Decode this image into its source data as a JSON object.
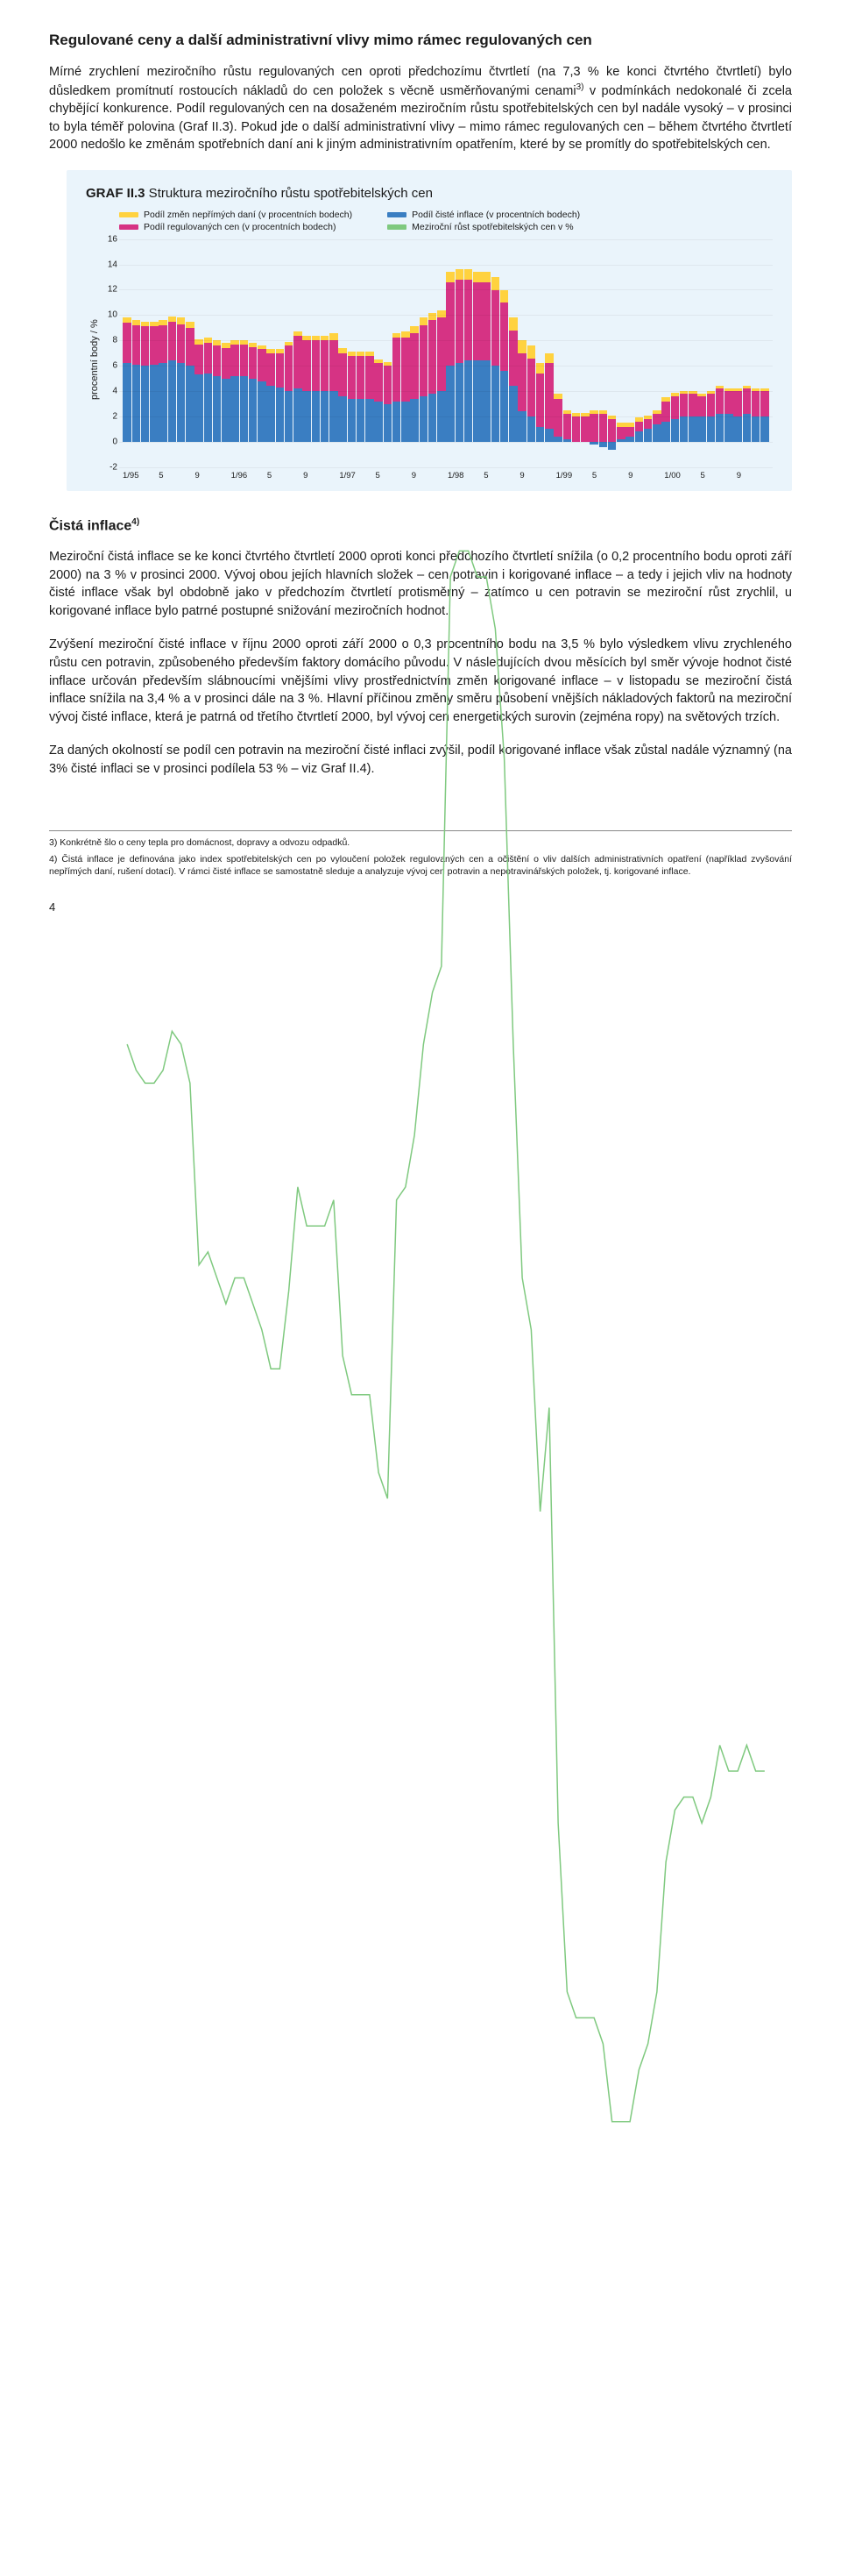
{
  "heading1": "Regulované ceny a další administrativní vlivy mimo rámec regulovaných cen",
  "para1": "Mírné zrychlení meziročního růstu regulovaných cen oproti předchozímu čtvrtletí (na 7,3 % ke konci čtvrtého čtvrtletí) bylo důsledkem promítnutí rostoucích nákladů do cen položek s věcně usměrňovanými cenami",
  "para1_sup": "3)",
  "para1b": " v podmínkách nedokonalé či zcela chybějící konkurence. Podíl regulovaných cen na dosaženém meziročním růstu spotřebitelských cen byl nadále vysoký – v prosinci to byla téměř polovina (Graf II.3). Pokud jde o další administrativní vlivy – mimo rámec regulovaných cen – během čtvrtého čtvrtletí 2000 nedošlo ke změnám spotřebních daní ani k jiným administrativním opatřením, které by se promítly do spotřebitelských cen.",
  "chart": {
    "title_bold": "GRAF II.3",
    "title_rest": " Struktura meziročního růstu spotřebitelských cen",
    "ylabel": "procentní body / %",
    "legend": {
      "l1": "Podíl změn nepřímých daní (v procentních bodech)",
      "l2": "Podíl regulovaných cen (v procentních bodech)",
      "l3": "Podíl čisté inflace (v procentních bodech)",
      "l4": "Meziroční růst spotřebitelských cen v %"
    },
    "colors": {
      "tax": "#ffd23f",
      "reg": "#d63384",
      "net": "#3a7ec2",
      "total_line": "#7fc97f",
      "bg": "#eaf4fb"
    },
    "ymin": -2,
    "ymax": 16,
    "ystep": 2,
    "xlabels": [
      "1/95",
      "5",
      "9",
      "1/96",
      "5",
      "9",
      "1/97",
      "5",
      "9",
      "1/98",
      "5",
      "9",
      "1/99",
      "5",
      "9",
      "1/00",
      "5",
      "9"
    ],
    "series": [
      {
        "net": 6.2,
        "reg": 3.2,
        "tax": 0.4
      },
      {
        "net": 6.1,
        "reg": 3.1,
        "tax": 0.4
      },
      {
        "net": 6.0,
        "reg": 3.1,
        "tax": 0.4
      },
      {
        "net": 6.1,
        "reg": 3.0,
        "tax": 0.4
      },
      {
        "net": 6.2,
        "reg": 3.0,
        "tax": 0.4
      },
      {
        "net": 6.4,
        "reg": 3.1,
        "tax": 0.4
      },
      {
        "net": 6.2,
        "reg": 3.1,
        "tax": 0.5
      },
      {
        "net": 6.0,
        "reg": 3.0,
        "tax": 0.5
      },
      {
        "net": 5.3,
        "reg": 2.4,
        "tax": 0.4
      },
      {
        "net": 5.4,
        "reg": 2.4,
        "tax": 0.4
      },
      {
        "net": 5.2,
        "reg": 2.4,
        "tax": 0.4
      },
      {
        "net": 5.0,
        "reg": 2.4,
        "tax": 0.4
      },
      {
        "net": 5.2,
        "reg": 2.5,
        "tax": 0.3
      },
      {
        "net": 5.2,
        "reg": 2.5,
        "tax": 0.3
      },
      {
        "net": 5.0,
        "reg": 2.5,
        "tax": 0.3
      },
      {
        "net": 4.8,
        "reg": 2.5,
        "tax": 0.3
      },
      {
        "net": 4.4,
        "reg": 2.6,
        "tax": 0.3
      },
      {
        "net": 4.3,
        "reg": 2.7,
        "tax": 0.3
      },
      {
        "net": 4.0,
        "reg": 3.6,
        "tax": 0.3
      },
      {
        "net": 4.2,
        "reg": 4.2,
        "tax": 0.3
      },
      {
        "net": 4.0,
        "reg": 4.0,
        "tax": 0.4
      },
      {
        "net": 4.0,
        "reg": 4.0,
        "tax": 0.4
      },
      {
        "net": 4.0,
        "reg": 4.0,
        "tax": 0.4
      },
      {
        "net": 4.0,
        "reg": 4.0,
        "tax": 0.6
      },
      {
        "net": 3.6,
        "reg": 3.4,
        "tax": 0.4
      },
      {
        "net": 3.4,
        "reg": 3.4,
        "tax": 0.3
      },
      {
        "net": 3.4,
        "reg": 3.4,
        "tax": 0.3
      },
      {
        "net": 3.4,
        "reg": 3.4,
        "tax": 0.3
      },
      {
        "net": 3.2,
        "reg": 3.0,
        "tax": 0.3
      },
      {
        "net": 3.0,
        "reg": 3.0,
        "tax": 0.3
      },
      {
        "net": 3.2,
        "reg": 5.0,
        "tax": 0.4
      },
      {
        "net": 3.2,
        "reg": 5.0,
        "tax": 0.5
      },
      {
        "net": 3.4,
        "reg": 5.2,
        "tax": 0.5
      },
      {
        "net": 3.6,
        "reg": 5.6,
        "tax": 0.6
      },
      {
        "net": 3.8,
        "reg": 5.8,
        "tax": 0.6
      },
      {
        "net": 4.0,
        "reg": 5.8,
        "tax": 0.6
      },
      {
        "net": 6.0,
        "reg": 6.6,
        "tax": 0.8
      },
      {
        "net": 6.2,
        "reg": 6.6,
        "tax": 0.8
      },
      {
        "net": 6.4,
        "reg": 6.4,
        "tax": 0.8
      },
      {
        "net": 6.4,
        "reg": 6.2,
        "tax": 0.8
      },
      {
        "net": 6.4,
        "reg": 6.2,
        "tax": 0.8
      },
      {
        "net": 6.0,
        "reg": 6.0,
        "tax": 1.0
      },
      {
        "net": 5.6,
        "reg": 5.4,
        "tax": 1.0
      },
      {
        "net": 4.4,
        "reg": 4.4,
        "tax": 1.0
      },
      {
        "net": 2.4,
        "reg": 4.6,
        "tax": 1.0
      },
      {
        "net": 2.0,
        "reg": 4.6,
        "tax": 1.0
      },
      {
        "net": 1.2,
        "reg": 4.2,
        "tax": 0.8
      },
      {
        "net": 1.0,
        "reg": 5.2,
        "tax": 0.8
      },
      {
        "net": 0.4,
        "reg": 3.0,
        "tax": 0.4
      },
      {
        "net": 0.2,
        "reg": 2.0,
        "tax": 0.3
      },
      {
        "net": 0.0,
        "reg": 2.0,
        "tax": 0.3
      },
      {
        "net": 0.0,
        "reg": 2.0,
        "tax": 0.3
      },
      {
        "net": -0.2,
        "reg": 2.2,
        "tax": 0.3
      },
      {
        "net": -0.4,
        "reg": 2.2,
        "tax": 0.3
      },
      {
        "net": -0.6,
        "reg": 1.8,
        "tax": 0.3
      },
      {
        "net": 0.2,
        "reg": 1.0,
        "tax": 0.3
      },
      {
        "net": 0.4,
        "reg": 0.8,
        "tax": 0.3
      },
      {
        "net": 0.8,
        "reg": 0.8,
        "tax": 0.3
      },
      {
        "net": 1.0,
        "reg": 0.8,
        "tax": 0.3
      },
      {
        "net": 1.4,
        "reg": 0.8,
        "tax": 0.3
      },
      {
        "net": 1.6,
        "reg": 1.6,
        "tax": 0.3
      },
      {
        "net": 1.8,
        "reg": 1.8,
        "tax": 0.3
      },
      {
        "net": 2.0,
        "reg": 1.8,
        "tax": 0.2
      },
      {
        "net": 2.0,
        "reg": 1.8,
        "tax": 0.2
      },
      {
        "net": 2.0,
        "reg": 1.6,
        "tax": 0.2
      },
      {
        "net": 2.0,
        "reg": 1.8,
        "tax": 0.2
      },
      {
        "net": 2.2,
        "reg": 2.0,
        "tax": 0.2
      },
      {
        "net": 2.2,
        "reg": 1.8,
        "tax": 0.2
      },
      {
        "net": 2.0,
        "reg": 2.0,
        "tax": 0.2
      },
      {
        "net": 2.2,
        "reg": 2.0,
        "tax": 0.2
      },
      {
        "net": 2.0,
        "reg": 2.0,
        "tax": 0.2
      },
      {
        "net": 2.0,
        "reg": 2.0,
        "tax": 0.2
      }
    ]
  },
  "heading2": "Čistá inflace",
  "heading2_sup": "4)",
  "para2": "Meziroční čistá inflace se ke konci čtvrtého čtvrtletí 2000 oproti konci předchozího čtvrtletí snížila (o 0,2 procentního bodu oproti září 2000) na 3 % v prosinci 2000. Vývoj obou jejích hlavních složek – cen potravin i korigované inflace – a tedy i jejich vliv na hodnoty čisté inflace však byl obdobně jako v předchozím čtvrtletí protisměrný – zatímco u cen potravin se meziroční růst zrychlil, u korigované inflace bylo patrné postupné snižování meziročních hodnot.",
  "para3": "Zvýšení meziroční čisté inflace v říjnu 2000 oproti září 2000 o 0,3 procentního bodu na 3,5 % bylo výsledkem vlivu zrychleného růstu cen potravin, způsobeného především faktory domácího původu. V následujících dvou měsících byl směr vývoje hodnot čisté inflace určován především slábnoucími vnějšími vlivy prostřednictvím změn korigované inflace – v listopadu se meziroční čistá inflace snížila na 3,4 % a v prosinci dále na 3 %. Hlavní příčinou změny směru působení vnějších nákladových faktorů na meziroční vývoj čisté inflace, která je patrná od třetího čtvrtletí 2000, byl vývoj cen energetických surovin (zejména ropy) na světových trzích.",
  "para4": "Za daných okolností se podíl cen potravin na meziroční čisté inflaci zvýšil, podíl korigované inflace však zůstal nadále významný (na 3% čisté inflaci se v prosinci podílela 53 % – viz Graf II.4).",
  "fn3": "3) Konkrétně šlo o ceny tepla pro domácnost, dopravy a odvozu odpadků.",
  "fn4": "4) Čistá inflace je definována jako index spotřebitelských cen po vyloučení položek regulovaných cen a očištění o vliv dalších administrativních opatření (například zvyšování nepřímých daní, rušení dotací). V rámci čisté inflace se samostatně sleduje a analyzuje vývoj cen potravin a nepotravinářských položek, tj. korigované inflace.",
  "pagenum": "4"
}
